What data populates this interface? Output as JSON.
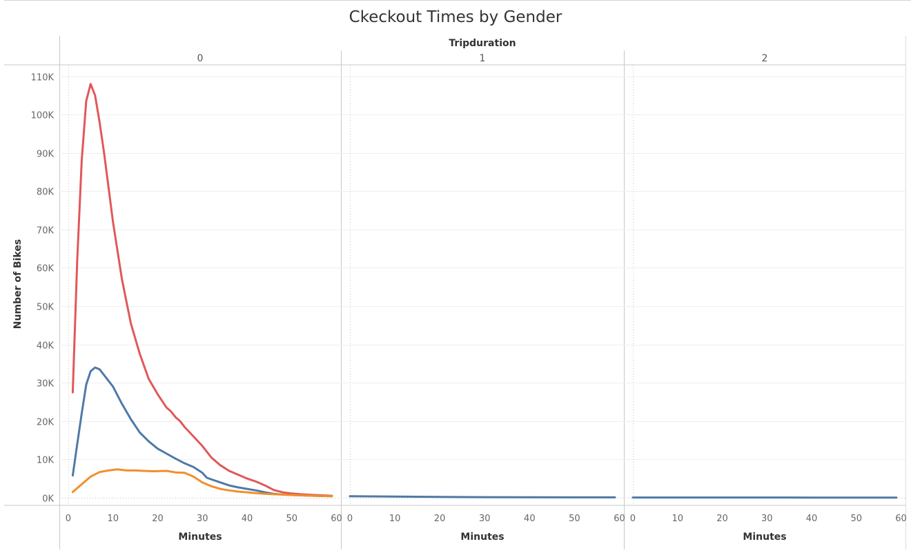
{
  "chart_data": {
    "type": "line",
    "title": "Ckeckout Times by Gender",
    "column_header": "Tripduration",
    "xlabel": "Minutes",
    "ylabel": "Number of Bikes",
    "xlim": [
      -2,
      61
    ],
    "ylim": [
      -2000,
      113000
    ],
    "x_ticks": [
      0,
      10,
      20,
      30,
      40,
      50,
      60
    ],
    "y_ticks": [
      {
        "value": 0,
        "label": "0K"
      },
      {
        "value": 10000,
        "label": "10K"
      },
      {
        "value": 20000,
        "label": "20K"
      },
      {
        "value": 30000,
        "label": "30K"
      },
      {
        "value": 40000,
        "label": "40K"
      },
      {
        "value": 50000,
        "label": "50K"
      },
      {
        "value": 60000,
        "label": "60K"
      },
      {
        "value": 70000,
        "label": "70K"
      },
      {
        "value": 80000,
        "label": "80K"
      },
      {
        "value": 90000,
        "label": "90K"
      },
      {
        "value": 100000,
        "label": "100K"
      },
      {
        "value": 110000,
        "label": "110K"
      }
    ],
    "grid": true,
    "legend": "none",
    "panels": [
      {
        "label": "0",
        "series": [
          {
            "color": "#e15759",
            "points": [
              [
                1,
                27500
              ],
              [
                2,
                62000
              ],
              [
                3,
                88000
              ],
              [
                4,
                103500
              ],
              [
                5,
                108000
              ],
              [
                6,
                105000
              ],
              [
                7,
                98000
              ],
              [
                8,
                90000
              ],
              [
                10,
                72000
              ],
              [
                12,
                57000
              ],
              [
                14,
                45500
              ],
              [
                16,
                37500
              ],
              [
                18,
                31000
              ],
              [
                20,
                27000
              ],
              [
                22,
                23500
              ],
              [
                23,
                22500
              ],
              [
                24,
                21000
              ],
              [
                25,
                20000
              ],
              [
                26,
                18500
              ],
              [
                28,
                16000
              ],
              [
                30,
                13500
              ],
              [
                32,
                10500
              ],
              [
                34,
                8500
              ],
              [
                36,
                7000
              ],
              [
                38,
                6000
              ],
              [
                40,
                5000
              ],
              [
                42,
                4200
              ],
              [
                44,
                3200
              ],
              [
                46,
                2000
              ],
              [
                48,
                1400
              ],
              [
                50,
                1100
              ],
              [
                52,
                900
              ],
              [
                55,
                700
              ],
              [
                59,
                500
              ]
            ]
          },
          {
            "color": "#4e79a7",
            "points": [
              [
                1,
                5800
              ],
              [
                2,
                14000
              ],
              [
                3,
                22000
              ],
              [
                4,
                29500
              ],
              [
                5,
                33000
              ],
              [
                6,
                34000
              ],
              [
                7,
                33500
              ],
              [
                8,
                32000
              ],
              [
                10,
                29000
              ],
              [
                12,
                24500
              ],
              [
                14,
                20500
              ],
              [
                16,
                17000
              ],
              [
                18,
                14700
              ],
              [
                20,
                12800
              ],
              [
                22,
                11500
              ],
              [
                24,
                10200
              ],
              [
                26,
                9000
              ],
              [
                28,
                8000
              ],
              [
                30,
                6500
              ],
              [
                31,
                5200
              ],
              [
                34,
                4000
              ],
              [
                36,
                3200
              ],
              [
                38,
                2700
              ],
              [
                40,
                2300
              ],
              [
                42,
                1900
              ],
              [
                44,
                1400
              ],
              [
                46,
                1000
              ],
              [
                48,
                800
              ],
              [
                50,
                700
              ],
              [
                55,
                500
              ],
              [
                59,
                400
              ]
            ]
          },
          {
            "color": "#f28e2b",
            "points": [
              [
                1,
                1500
              ],
              [
                3,
                3500
              ],
              [
                5,
                5500
              ],
              [
                7,
                6700
              ],
              [
                9,
                7100
              ],
              [
                11,
                7400
              ],
              [
                13,
                7100
              ],
              [
                15,
                7100
              ],
              [
                17,
                7000
              ],
              [
                19,
                6900
              ],
              [
                22,
                7000
              ],
              [
                24,
                6600
              ],
              [
                26,
                6500
              ],
              [
                28,
                5500
              ],
              [
                30,
                4000
              ],
              [
                32,
                3000
              ],
              [
                34,
                2300
              ],
              [
                36,
                1900
              ],
              [
                38,
                1600
              ],
              [
                40,
                1400
              ],
              [
                42,
                1200
              ],
              [
                44,
                1000
              ],
              [
                46,
                900
              ],
              [
                48,
                800
              ],
              [
                50,
                700
              ],
              [
                55,
                500
              ],
              [
                59,
                400
              ]
            ]
          }
        ]
      },
      {
        "label": "1",
        "series": [
          {
            "color": "#4e79a7",
            "points": [
              [
                0,
                400
              ],
              [
                10,
                280
              ],
              [
                20,
                200
              ],
              [
                30,
                150
              ],
              [
                40,
                110
              ],
              [
                50,
                90
              ],
              [
                59,
                80
              ]
            ]
          }
        ]
      },
      {
        "label": "2",
        "series": [
          {
            "color": "#4e79a7",
            "points": [
              [
                0,
                60
              ],
              [
                10,
                55
              ],
              [
                20,
                50
              ],
              [
                30,
                45
              ],
              [
                40,
                40
              ],
              [
                50,
                35
              ],
              [
                59,
                30
              ]
            ]
          }
        ]
      }
    ]
  }
}
